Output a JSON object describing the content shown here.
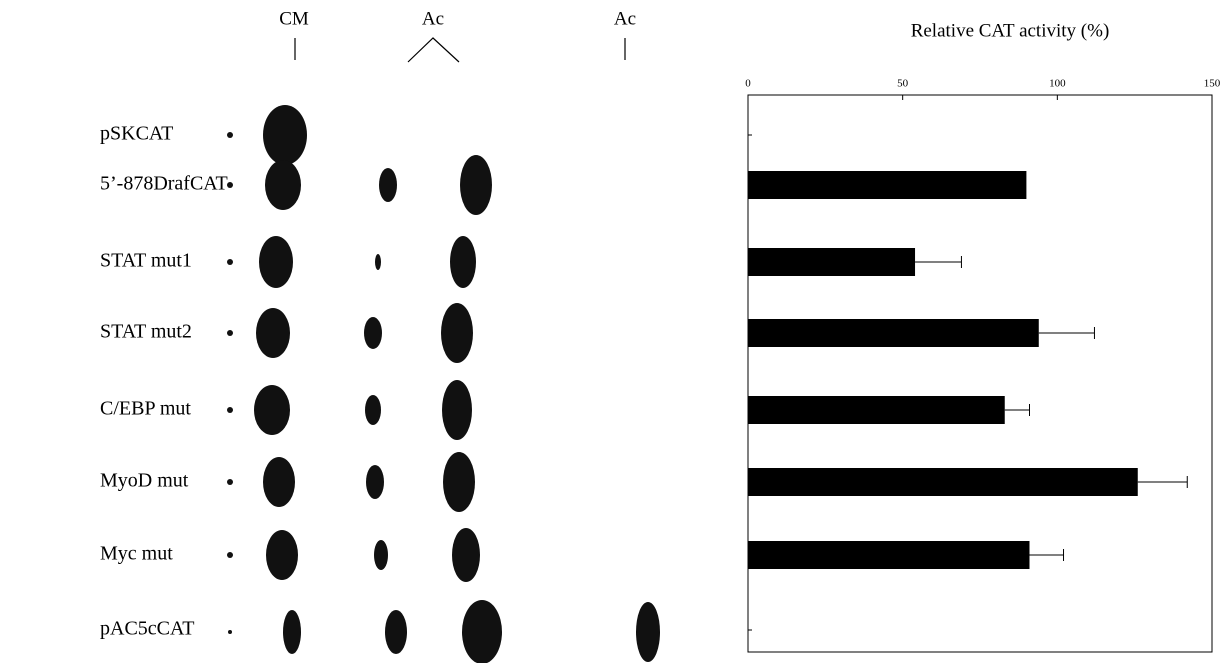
{
  "chart_data": {
    "type": "bar",
    "orientation": "horizontal",
    "title": "Relative CAT activity (%)",
    "lane_labels": [
      "CM",
      "Ac",
      "Ac"
    ],
    "categories": [
      "pSKCAT",
      "5’-878DrafCAT",
      "STAT mut1",
      "STAT mut2",
      "C/EBP mut",
      "MyoD mut",
      "Myc mut",
      "pAC5cCAT"
    ],
    "values": [
      null,
      90,
      54,
      94,
      83,
      126,
      91,
      null
    ],
    "errors": [
      null,
      null,
      15,
      18,
      8,
      16,
      11,
      null
    ],
    "color": "#000000",
    "xlim": [
      0,
      150
    ],
    "xticks": [
      0,
      50,
      100,
      150
    ]
  }
}
